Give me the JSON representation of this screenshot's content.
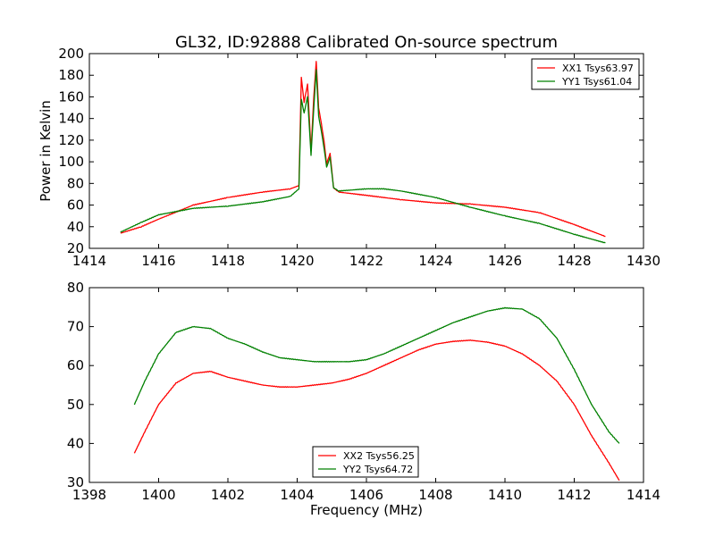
{
  "figure": {
    "title": "GL32, ID:92888 Calibrated On-source spectrum"
  },
  "chart_data": [
    {
      "type": "line",
      "title": "GL32, ID:92888 Calibrated On-source spectrum",
      "xlabel": "",
      "ylabel": "Power in Kelvin",
      "xlim": [
        1414,
        1430
      ],
      "ylim": [
        20,
        200
      ],
      "xticks": [
        "1414",
        "1416",
        "1418",
        "1420",
        "1422",
        "1424",
        "1426",
        "1428",
        "1430"
      ],
      "yticks": [
        "20",
        "40",
        "60",
        "80",
        "100",
        "120",
        "140",
        "160",
        "180",
        "200"
      ],
      "legend_position": "top-right",
      "series": [
        {
          "name": "XX1 Tsys63.97",
          "color": "#ff0000",
          "x": [
            1414.9,
            1415.5,
            1416.0,
            1417.0,
            1418.0,
            1419.0,
            1419.8,
            1420.05,
            1420.12,
            1420.2,
            1420.3,
            1420.4,
            1420.48,
            1420.55,
            1420.62,
            1420.7,
            1420.78,
            1420.85,
            1420.95,
            1421.05,
            1421.2,
            1422.0,
            1423.0,
            1424.0,
            1425.0,
            1426.0,
            1427.0,
            1428.0,
            1428.9
          ],
          "values": [
            34,
            40,
            47,
            60,
            67,
            72,
            75,
            78,
            178,
            155,
            172,
            110,
            160,
            193,
            150,
            135,
            118,
            98,
            108,
            76,
            72,
            69,
            65,
            62,
            61,
            58,
            53,
            42,
            31
          ]
        },
        {
          "name": "YY1 Tsys61.04",
          "color": "#008000",
          "x": [
            1414.9,
            1415.5,
            1416.0,
            1417.0,
            1418.0,
            1419.0,
            1419.8,
            1420.05,
            1420.12,
            1420.2,
            1420.3,
            1420.4,
            1420.48,
            1420.55,
            1420.62,
            1420.7,
            1420.78,
            1420.85,
            1420.95,
            1421.05,
            1421.2,
            1422.0,
            1422.5,
            1423.0,
            1424.0,
            1425.0,
            1426.0,
            1427.0,
            1428.0,
            1428.9
          ],
          "values": [
            35,
            44,
            51,
            57,
            59,
            63,
            68,
            75,
            158,
            145,
            160,
            106,
            150,
            185,
            142,
            128,
            112,
            95,
            104,
            76,
            73,
            75,
            75,
            73,
            67,
            58,
            50,
            43,
            33,
            25
          ]
        }
      ]
    },
    {
      "type": "line",
      "title": "",
      "xlabel": "Frequency (MHz)",
      "ylabel": "",
      "xlim": [
        1398,
        1414
      ],
      "ylim": [
        30,
        80
      ],
      "xticks": [
        "1398",
        "1400",
        "1402",
        "1404",
        "1406",
        "1408",
        "1410",
        "1412",
        "1414"
      ],
      "yticks": [
        "30",
        "40",
        "50",
        "60",
        "70",
        "80"
      ],
      "legend_position": "bottom-center",
      "series": [
        {
          "name": "XX2 Tsys56.25",
          "color": "#ff0000",
          "x": [
            1399.3,
            1399.6,
            1400.0,
            1400.5,
            1401.0,
            1401.5,
            1402.0,
            1402.5,
            1403.0,
            1403.5,
            1404.0,
            1404.5,
            1405.0,
            1405.5,
            1406.0,
            1406.5,
            1407.0,
            1407.5,
            1408.0,
            1408.5,
            1409.0,
            1409.5,
            1410.0,
            1410.5,
            1411.0,
            1411.5,
            1412.0,
            1412.5,
            1413.0,
            1413.3
          ],
          "values": [
            37.5,
            43,
            50,
            55.5,
            58,
            58.5,
            57,
            56,
            55,
            54.5,
            54.5,
            55,
            55.5,
            56.5,
            58,
            60,
            62,
            64,
            65.5,
            66.2,
            66.5,
            66,
            65,
            63,
            60,
            56,
            50,
            42,
            35,
            30.5
          ]
        },
        {
          "name": "YY2 Tsys64.72",
          "color": "#008000",
          "x": [
            1399.3,
            1399.6,
            1400.0,
            1400.5,
            1401.0,
            1401.5,
            1402.0,
            1402.5,
            1403.0,
            1403.5,
            1404.0,
            1404.5,
            1405.0,
            1405.5,
            1406.0,
            1406.5,
            1407.0,
            1407.5,
            1408.0,
            1408.5,
            1409.0,
            1409.5,
            1410.0,
            1410.5,
            1411.0,
            1411.5,
            1412.0,
            1412.5,
            1413.0,
            1413.3
          ],
          "values": [
            50,
            56,
            63,
            68.5,
            70,
            69.5,
            67,
            65.5,
            63.5,
            62,
            61.5,
            61,
            61,
            61,
            61.5,
            63,
            65,
            67,
            69,
            71,
            72.5,
            74,
            74.8,
            74.5,
            72,
            67,
            59,
            50,
            43,
            40
          ]
        }
      ]
    }
  ]
}
